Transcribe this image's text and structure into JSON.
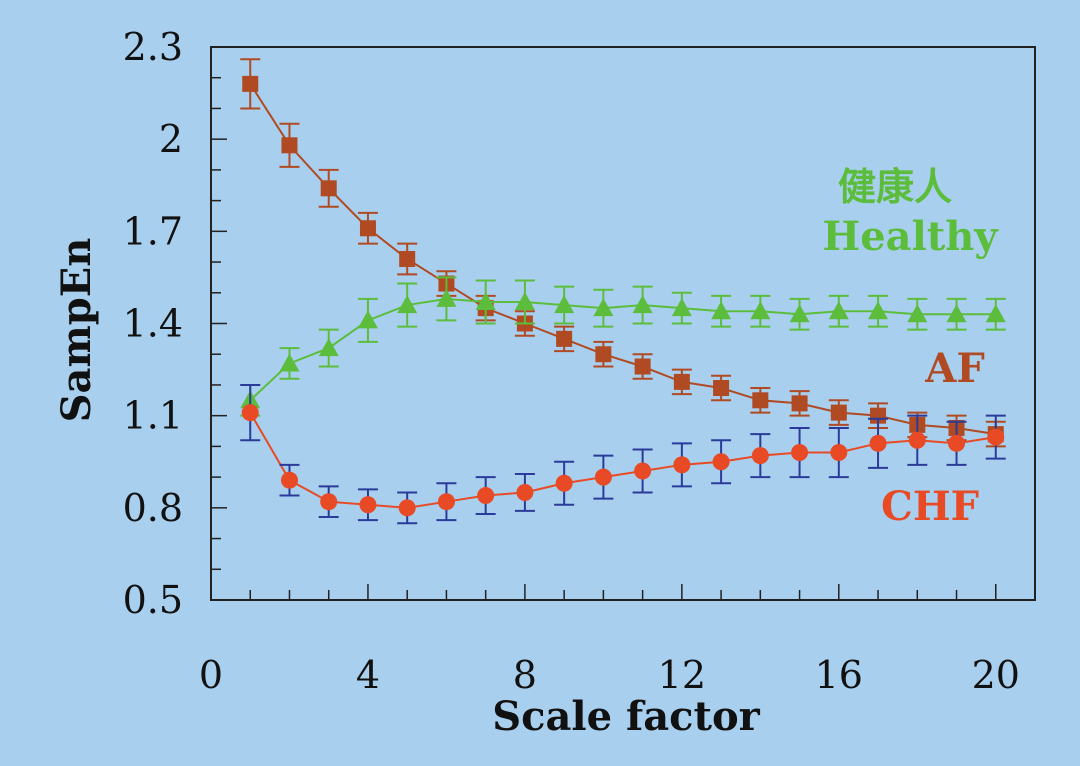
{
  "chart_data": {
    "type": "line",
    "title": "",
    "xlabel": "Scale factor",
    "ylabel": "SampEn",
    "xlim": [
      0,
      21
    ],
    "ylim": [
      0.5,
      2.3
    ],
    "x_ticks": [
      "0",
      "4",
      "8",
      "12",
      "16",
      "20"
    ],
    "x_tick_values": [
      0,
      4,
      8,
      12,
      16,
      20
    ],
    "y_ticks": [
      "2.3",
      "2",
      "1.7",
      "1.4",
      "1.1",
      "0.8",
      "0.5"
    ],
    "y_tick_values": [
      2.3,
      2.0,
      1.7,
      1.4,
      1.1,
      0.8,
      0.5
    ],
    "x": [
      1,
      2,
      3,
      4,
      5,
      6,
      7,
      8,
      9,
      10,
      11,
      12,
      13,
      14,
      15,
      16,
      17,
      18,
      19,
      20
    ],
    "series": [
      {
        "name": "AF",
        "label": "AF",
        "color": "#b04a22",
        "marker": "square",
        "values": [
          2.18,
          1.98,
          1.84,
          1.71,
          1.61,
          1.53,
          1.45,
          1.4,
          1.35,
          1.3,
          1.26,
          1.21,
          1.19,
          1.15,
          1.14,
          1.11,
          1.1,
          1.07,
          1.06,
          1.04
        ],
        "errors": [
          0.08,
          0.07,
          0.06,
          0.05,
          0.05,
          0.04,
          0.04,
          0.04,
          0.04,
          0.04,
          0.04,
          0.04,
          0.04,
          0.04,
          0.04,
          0.04,
          0.04,
          0.04,
          0.04,
          0.04
        ]
      },
      {
        "name": "Healthy",
        "label": "Healthy",
        "label_cn": "健康人",
        "color": "#5cbd3c",
        "marker": "triangle",
        "values": [
          1.15,
          1.27,
          1.32,
          1.41,
          1.46,
          1.48,
          1.47,
          1.47,
          1.46,
          1.45,
          1.46,
          1.45,
          1.44,
          1.44,
          1.43,
          1.44,
          1.44,
          1.43,
          1.43,
          1.43
        ],
        "errors": [
          0.05,
          0.05,
          0.06,
          0.07,
          0.07,
          0.07,
          0.07,
          0.07,
          0.06,
          0.06,
          0.06,
          0.05,
          0.05,
          0.05,
          0.05,
          0.05,
          0.05,
          0.05,
          0.05,
          0.05
        ]
      },
      {
        "name": "CHF",
        "label": "CHF",
        "color": "#e84a25",
        "error_color": "#2b3b9a",
        "marker": "circle",
        "values": [
          1.11,
          0.89,
          0.82,
          0.81,
          0.8,
          0.82,
          0.84,
          0.85,
          0.88,
          0.9,
          0.92,
          0.94,
          0.95,
          0.97,
          0.98,
          0.98,
          1.01,
          1.02,
          1.01,
          1.03
        ],
        "errors": [
          0.09,
          0.05,
          0.05,
          0.05,
          0.05,
          0.06,
          0.06,
          0.06,
          0.07,
          0.07,
          0.07,
          0.07,
          0.07,
          0.07,
          0.08,
          0.08,
          0.08,
          0.08,
          0.07,
          0.07
        ]
      }
    ]
  }
}
